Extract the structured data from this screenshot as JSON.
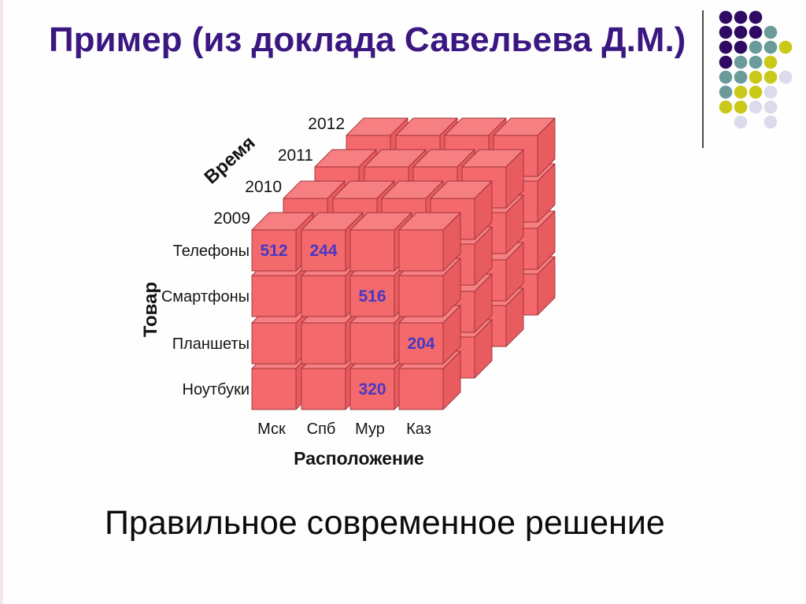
{
  "title": "Пример (из доклада Савельева Д.М.)",
  "caption": "Правильное современное решение",
  "colors": {
    "title": "#3B1781",
    "caption": "#0B0B0B",
    "accent_strip": "#F5E6F0",
    "divider_line": "#4D4D4D",
    "cube_front": "#F4696C",
    "cube_top": "#F67F81",
    "cube_right": "#E85C60",
    "cube_outline": "#A03238",
    "value_text": "#4638C4",
    "label_text": "#141414",
    "dot_purple": "#2F0A64",
    "dot_teal": "#6A9A9A",
    "dot_yellow": "#C9C919",
    "dot_lavender": "#DBDBEB"
  },
  "decoration": {
    "pattern": [
      [
        "purple",
        "purple",
        "purple",
        null,
        null
      ],
      [
        "purple",
        "purple",
        "purple",
        "teal",
        null
      ],
      [
        "purple",
        "purple",
        "teal",
        "teal",
        "yellow"
      ],
      [
        "purple",
        "teal",
        "teal",
        "yellow",
        null
      ],
      [
        "teal",
        "teal",
        "yellow",
        "yellow",
        "lavender"
      ],
      [
        "teal",
        "yellow",
        "yellow",
        "lavender",
        null
      ],
      [
        "yellow",
        "yellow",
        "lavender",
        "lavender",
        null
      ],
      [
        null,
        "lavender",
        null,
        "lavender",
        null
      ]
    ]
  },
  "chart_data": {
    "type": "olap-cube-3d",
    "title": "",
    "axes": {
      "x": {
        "label": "Расположение",
        "categories": [
          "Мск",
          "Спб",
          "Мур",
          "Каз"
        ]
      },
      "y": {
        "label": "Товар",
        "categories": [
          "Телефоны",
          "Смартфоны",
          "Планшеты",
          "Ноутбуки"
        ]
      },
      "z": {
        "label": "Время",
        "categories": [
          "2009",
          "2010",
          "2011",
          "2012"
        ]
      }
    },
    "grid_size": [
      4,
      4,
      4
    ],
    "values": [
      {
        "product": "Телефоны",
        "location": "Мск",
        "year": "2009",
        "value": 512
      },
      {
        "product": "Телефоны",
        "location": "Спб",
        "year": "2009",
        "value": 244
      },
      {
        "product": "Смартфоны",
        "location": "Мур",
        "year": "2009",
        "value": 516
      },
      {
        "product": "Планшеты",
        "location": "Каз",
        "year": "2009",
        "value": 204
      },
      {
        "product": "Ноутбуки",
        "location": "Мур",
        "year": "2009",
        "value": 320
      }
    ]
  }
}
